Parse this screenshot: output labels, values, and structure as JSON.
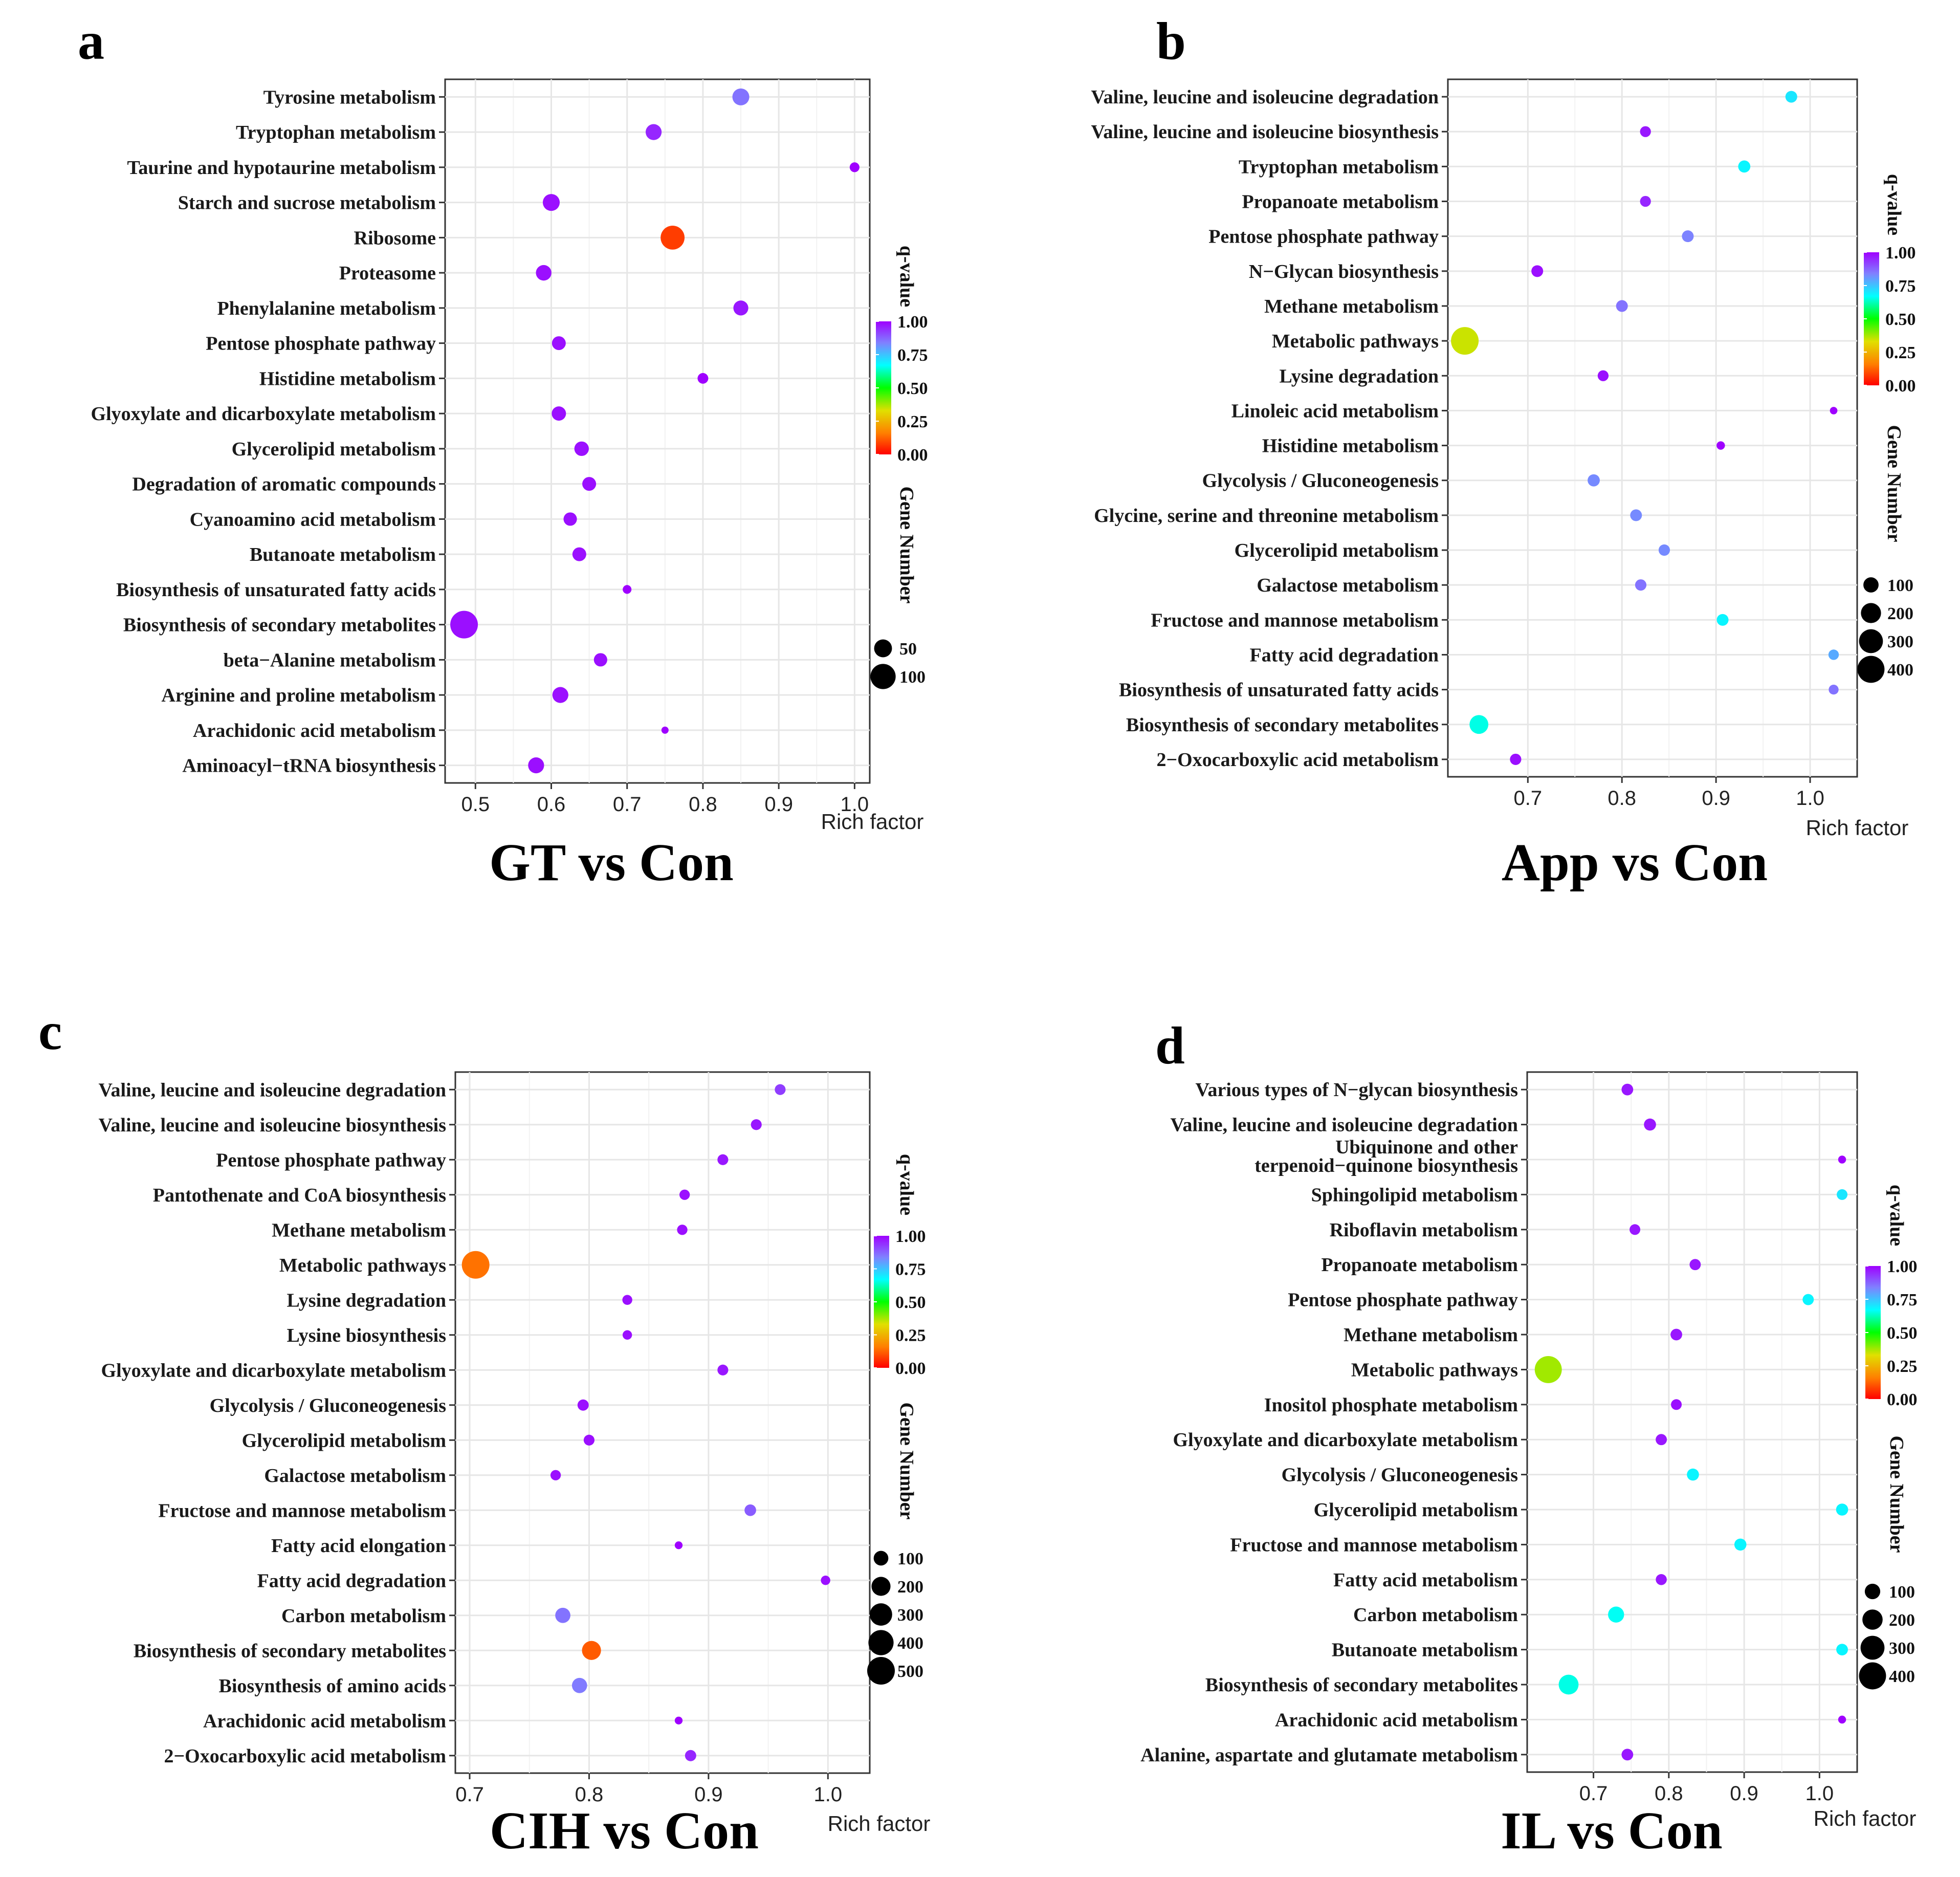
{
  "panels": [
    {
      "label": "a",
      "comparison": "GT vs Con"
    },
    {
      "label": "b",
      "comparison": "App vs Con"
    },
    {
      "label": "c",
      "comparison": "CIH vs Con"
    },
    {
      "label": "d",
      "comparison": "IL vs Con"
    }
  ],
  "legend": {
    "color_title": "q-value",
    "size_title": "Gene Number",
    "color_scale": [
      "#ff0000",
      "#ff7f00",
      "#e0e000",
      "#00ff00",
      "#00ffff",
      "#8080ff",
      "#9f00ff"
    ]
  },
  "chart_data": [
    {
      "type": "scatter",
      "panel": "a",
      "title": "GT vs Con",
      "xlabel": "Rich factor",
      "ylabel": "",
      "xlim": [
        0.46,
        1.02
      ],
      "xticks": [
        "0.5",
        "0.6",
        "0.7",
        "0.8",
        "0.9",
        "1.0"
      ],
      "xtick_values": [
        0.5,
        0.6,
        0.7,
        0.8,
        0.9,
        1.0
      ],
      "color_legend": {
        "title": "q-value",
        "ticks": [
          "0.00",
          "0.25",
          "0.50",
          "0.75",
          "1.00"
        ]
      },
      "size_legend": {
        "title": "Gene Number",
        "ticks": [
          "50",
          "100"
        ],
        "values": [
          50,
          100
        ],
        "smin": 8,
        "smax": 120
      },
      "categories": [
        "Tyrosine metabolism",
        "Tryptophan metabolism",
        "Taurine and hypotaurine metabolism",
        "Starch and sucrose metabolism",
        "Ribosome",
        "Proteasome",
        "Phenylalanine metabolism",
        "Pentose phosphate pathway",
        "Histidine metabolism",
        "Glyoxylate and dicarboxylate metabolism",
        "Glycerolipid metabolism",
        "Degradation of aromatic compounds",
        "Cyanoamino acid metabolism",
        "Butanoate metabolism",
        "Biosynthesis of unsaturated fatty acids",
        "Biosynthesis of secondary metabolites",
        "beta−Alanine metabolism",
        "Arginine and proline metabolism",
        "Arachidonic acid metabolism",
        "Aminoacyl−tRNA biosynthesis"
      ],
      "points": [
        {
          "x": 0.85,
          "q": 0.85,
          "n": 45
        },
        {
          "x": 0.735,
          "q": 0.95,
          "n": 40
        },
        {
          "x": 1.0,
          "q": 1.0,
          "n": 15
        },
        {
          "x": 0.6,
          "q": 0.98,
          "n": 45
        },
        {
          "x": 0.76,
          "q": 0.08,
          "n": 90
        },
        {
          "x": 0.59,
          "q": 0.98,
          "n": 38
        },
        {
          "x": 0.85,
          "q": 0.97,
          "n": 35
        },
        {
          "x": 0.61,
          "q": 0.98,
          "n": 30
        },
        {
          "x": 0.8,
          "q": 1.0,
          "n": 18
        },
        {
          "x": 0.61,
          "q": 0.98,
          "n": 32
        },
        {
          "x": 0.64,
          "q": 0.98,
          "n": 33
        },
        {
          "x": 0.65,
          "q": 0.98,
          "n": 30
        },
        {
          "x": 0.625,
          "q": 0.98,
          "n": 28
        },
        {
          "x": 0.637,
          "q": 0.98,
          "n": 30
        },
        {
          "x": 0.7,
          "q": 1.0,
          "n": 12
        },
        {
          "x": 0.485,
          "q": 0.98,
          "n": 120
        },
        {
          "x": 0.665,
          "q": 0.98,
          "n": 28
        },
        {
          "x": 0.612,
          "q": 0.98,
          "n": 40
        },
        {
          "x": 0.75,
          "q": 1.0,
          "n": 8
        },
        {
          "x": 0.58,
          "q": 0.98,
          "n": 40
        }
      ]
    },
    {
      "type": "scatter",
      "panel": "b",
      "title": "App vs Con",
      "xlabel": "Rich factor",
      "ylabel": "",
      "xlim": [
        0.615,
        1.05
      ],
      "xticks": [
        "0.7",
        "0.8",
        "0.9",
        "1.0"
      ],
      "xtick_values": [
        0.7,
        0.8,
        0.9,
        1.0
      ],
      "color_legend": {
        "title": "q-value",
        "ticks": [
          "0.00",
          "0.25",
          "0.50",
          "0.75",
          "1.00"
        ]
      },
      "size_legend": {
        "title": "Gene Number",
        "ticks": [
          "100",
          "200",
          "300",
          "400"
        ],
        "values": [
          100,
          200,
          300,
          400
        ],
        "smin": 10,
        "smax": 420
      },
      "categories": [
        "Valine, leucine and isoleucine degradation",
        "Valine, leucine and isoleucine biosynthesis",
        "Tryptophan metabolism",
        "Propanoate metabolism",
        "Pentose phosphate pathway",
        "N−Glycan biosynthesis",
        "Methane metabolism",
        "Metabolic pathways",
        "Lysine degradation",
        "Linoleic acid metabolism",
        "Histidine metabolism",
        "Glycolysis / Gluconeogenesis",
        "Glycine, serine and threonine metabolism",
        "Glycerolipid metabolism",
        "Galactose metabolism",
        "Fructose and mannose metabolism",
        "Fatty acid degradation",
        "Biosynthesis of unsaturated fatty acids",
        "Biosynthesis of secondary metabolites",
        "2−Oxocarboxylic acid metabolism"
      ],
      "points": [
        {
          "x": 0.98,
          "q": 0.7,
          "n": 50
        },
        {
          "x": 0.825,
          "q": 0.97,
          "n": 40
        },
        {
          "x": 0.93,
          "q": 0.68,
          "n": 55
        },
        {
          "x": 0.825,
          "q": 0.95,
          "n": 40
        },
        {
          "x": 0.87,
          "q": 0.83,
          "n": 50
        },
        {
          "x": 0.71,
          "q": 0.98,
          "n": 50
        },
        {
          "x": 0.8,
          "q": 0.85,
          "n": 50
        },
        {
          "x": 0.633,
          "q": 0.35,
          "n": 420
        },
        {
          "x": 0.78,
          "q": 0.98,
          "n": 40
        },
        {
          "x": 1.025,
          "q": 1.0,
          "n": 12
        },
        {
          "x": 0.905,
          "q": 1.0,
          "n": 18
        },
        {
          "x": 0.77,
          "q": 0.82,
          "n": 55
        },
        {
          "x": 0.815,
          "q": 0.82,
          "n": 50
        },
        {
          "x": 0.845,
          "q": 0.82,
          "n": 45
        },
        {
          "x": 0.82,
          "q": 0.85,
          "n": 45
        },
        {
          "x": 0.907,
          "q": 0.68,
          "n": 50
        },
        {
          "x": 1.025,
          "q": 0.78,
          "n": 35
        },
        {
          "x": 1.025,
          "q": 0.85,
          "n": 30
        },
        {
          "x": 0.648,
          "q": 0.65,
          "n": 170
        },
        {
          "x": 0.687,
          "q": 0.98,
          "n": 45
        }
      ]
    },
    {
      "type": "scatter",
      "panel": "c",
      "title": "CIH vs Con",
      "xlabel": "Rich factor",
      "ylabel": "",
      "xlim": [
        0.688,
        1.035
      ],
      "xticks": [
        "0.7",
        "0.8",
        "0.9",
        "1.0"
      ],
      "xtick_values": [
        0.7,
        0.8,
        0.9,
        1.0
      ],
      "color_legend": {
        "title": "q-value",
        "ticks": [
          "0.00",
          "0.25",
          "0.50",
          "0.75",
          "1.00"
        ]
      },
      "size_legend": {
        "title": "Gene Number",
        "ticks": [
          "100",
          "200",
          "300",
          "400",
          "500"
        ],
        "values": [
          100,
          200,
          300,
          400,
          500
        ],
        "smin": 8,
        "smax": 500
      },
      "categories": [
        "Valine, leucine and isoleucine degradation",
        "Valine, leucine and isoleucine biosynthesis",
        "Pentose phosphate pathway",
        "Pantothenate and CoA biosynthesis",
        "Methane metabolism",
        "Metabolic pathways",
        "Lysine degradation",
        "Lysine biosynthesis",
        "Glyoxylate and dicarboxylate metabolism",
        "Glycolysis / Gluconeogenesis",
        "Glycerolipid metabolism",
        "Galactose metabolism",
        "Fructose and mannose metabolism",
        "Fatty acid elongation",
        "Fatty acid degradation",
        "Carbon metabolism",
        "Biosynthesis of secondary metabolites",
        "Biosynthesis of amino acids",
        "Arachidonic acid metabolism",
        "2−Oxocarboxylic acid metabolism"
      ],
      "points": [
        {
          "x": 0.96,
          "q": 0.92,
          "n": 40
        },
        {
          "x": 0.94,
          "q": 0.97,
          "n": 40
        },
        {
          "x": 0.912,
          "q": 0.97,
          "n": 40
        },
        {
          "x": 0.88,
          "q": 0.98,
          "n": 35
        },
        {
          "x": 0.878,
          "q": 0.98,
          "n": 35
        },
        {
          "x": 0.705,
          "q": 0.15,
          "n": 500
        },
        {
          "x": 0.832,
          "q": 0.98,
          "n": 30
        },
        {
          "x": 0.832,
          "q": 0.98,
          "n": 25
        },
        {
          "x": 0.912,
          "q": 0.97,
          "n": 40
        },
        {
          "x": 0.795,
          "q": 0.98,
          "n": 45
        },
        {
          "x": 0.8,
          "q": 0.98,
          "n": 40
        },
        {
          "x": 0.772,
          "q": 0.98,
          "n": 35
        },
        {
          "x": 0.935,
          "q": 0.88,
          "n": 50
        },
        {
          "x": 0.875,
          "q": 1.0,
          "n": 12
        },
        {
          "x": 0.998,
          "q": 0.98,
          "n": 25
        },
        {
          "x": 0.778,
          "q": 0.85,
          "n": 110
        },
        {
          "x": 0.802,
          "q": 0.12,
          "n": 200
        },
        {
          "x": 0.792,
          "q": 0.84,
          "n": 110
        },
        {
          "x": 0.875,
          "q": 1.0,
          "n": 12
        },
        {
          "x": 0.885,
          "q": 0.95,
          "n": 45
        }
      ]
    },
    {
      "type": "scatter",
      "panel": "d",
      "title": "IL vs Con",
      "xlabel": "Rich factor",
      "ylabel": "",
      "xlim": [
        0.612,
        1.05
      ],
      "xticks": [
        "0.7",
        "0.8",
        "0.9",
        "1.0"
      ],
      "xtick_values": [
        0.7,
        0.8,
        0.9,
        1.0
      ],
      "color_legend": {
        "title": "q-value",
        "ticks": [
          "0.00",
          "0.25",
          "0.50",
          "0.75",
          "1.00"
        ]
      },
      "size_legend": {
        "title": "Gene Number",
        "ticks": [
          "100",
          "200",
          "300",
          "400"
        ],
        "values": [
          100,
          200,
          300,
          400
        ],
        "smin": 8,
        "smax": 420
      },
      "categories": [
        "Various types of N−glycan biosynthesis",
        "Valine, leucine and isoleucine degradation",
        "Ubiquinone and other\nterpenoid−quinone biosynthesis",
        "Sphingolipid metabolism",
        "Riboflavin metabolism",
        "Propanoate metabolism",
        "Pentose phosphate pathway",
        "Methane metabolism",
        "Metabolic pathways",
        "Inositol phosphate metabolism",
        "Glyoxylate and dicarboxylate metabolism",
        "Glycolysis / Gluconeogenesis",
        "Glycerolipid metabolism",
        "Fructose and mannose metabolism",
        "Fatty acid metabolism",
        "Carbon metabolism",
        "Butanoate metabolism",
        "Biosynthesis of secondary metabolites",
        "Arachidonic acid metabolism",
        "Alanine, aspartate and glutamate metabolism"
      ],
      "points": [
        {
          "x": 0.745,
          "q": 0.97,
          "n": 45
        },
        {
          "x": 0.775,
          "q": 0.97,
          "n": 50
        },
        {
          "x": 1.03,
          "q": 1.0,
          "n": 12
        },
        {
          "x": 1.03,
          "q": 0.7,
          "n": 35
        },
        {
          "x": 0.755,
          "q": 0.97,
          "n": 35
        },
        {
          "x": 0.835,
          "q": 0.97,
          "n": 40
        },
        {
          "x": 0.985,
          "q": 0.68,
          "n": 40
        },
        {
          "x": 0.81,
          "q": 0.97,
          "n": 45
        },
        {
          "x": 0.64,
          "q": 0.38,
          "n": 400
        },
        {
          "x": 0.81,
          "q": 0.98,
          "n": 35
        },
        {
          "x": 0.79,
          "q": 0.97,
          "n": 40
        },
        {
          "x": 0.832,
          "q": 0.68,
          "n": 50
        },
        {
          "x": 1.03,
          "q": 0.68,
          "n": 50
        },
        {
          "x": 0.895,
          "q": 0.68,
          "n": 50
        },
        {
          "x": 0.79,
          "q": 0.97,
          "n": 38
        },
        {
          "x": 0.73,
          "q": 0.66,
          "n": 110
        },
        {
          "x": 1.03,
          "q": 0.68,
          "n": 45
        },
        {
          "x": 0.667,
          "q": 0.65,
          "n": 190
        },
        {
          "x": 1.03,
          "q": 1.0,
          "n": 12
        },
        {
          "x": 0.745,
          "q": 0.97,
          "n": 45
        }
      ]
    }
  ]
}
